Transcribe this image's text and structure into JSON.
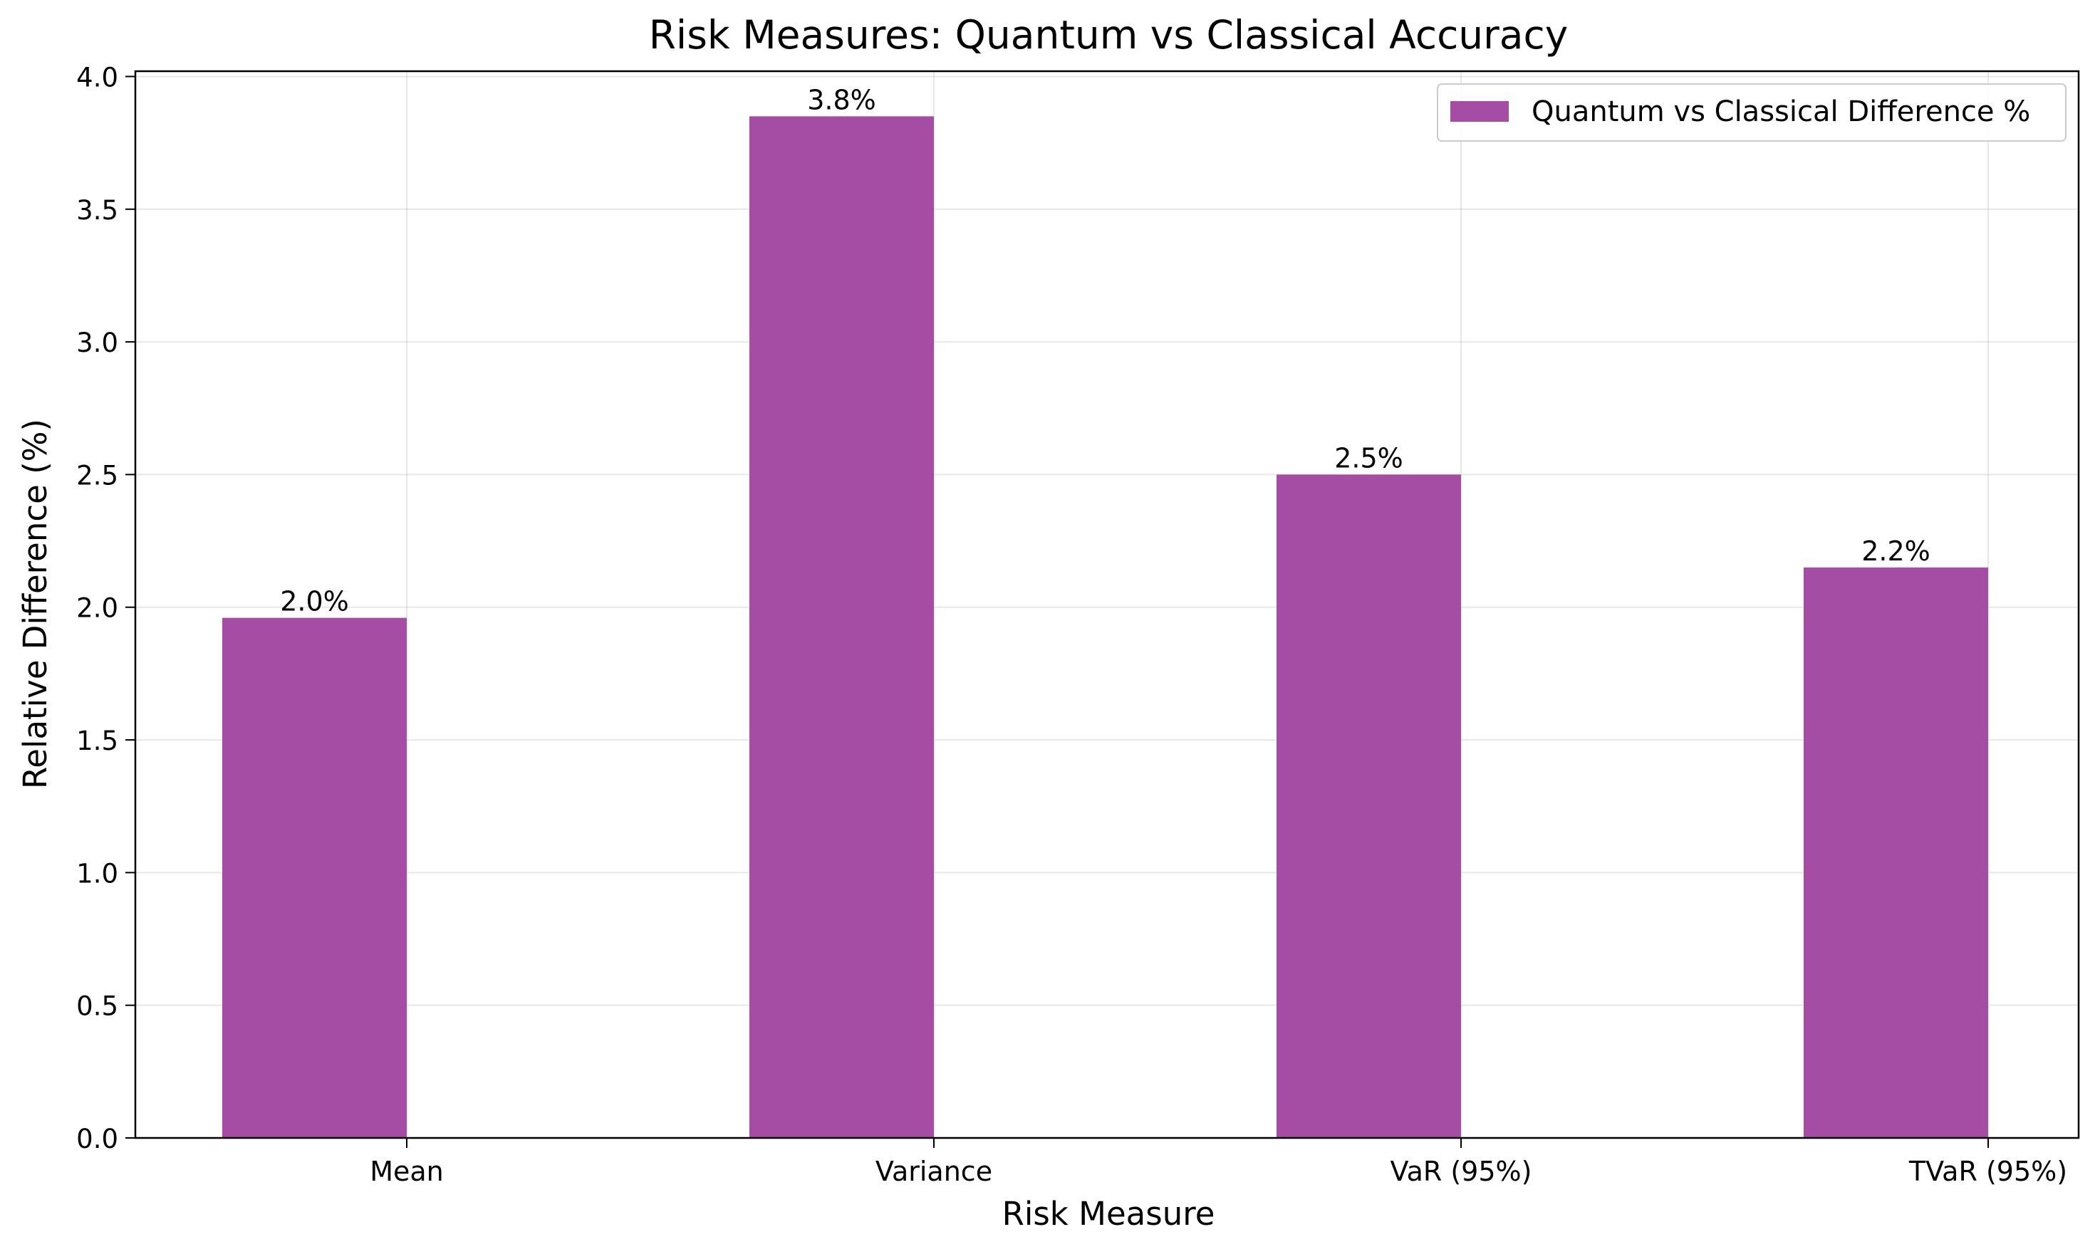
{
  "chart_data": {
    "type": "bar",
    "title": "Risk Measures: Quantum vs Classical Accuracy",
    "xlabel": "Risk Measure",
    "ylabel": "Relative Difference (%)",
    "categories": [
      "Mean",
      "Variance",
      "VaR (95%)",
      "TVaR (95%)"
    ],
    "series": [
      {
        "name": "Quantum vs Classical Difference %",
        "values": [
          1.96,
          3.85,
          2.5,
          2.15
        ],
        "data_labels": [
          "2.0%",
          "3.8%",
          "2.5%",
          "2.2%"
        ],
        "color": "#a54ca4"
      }
    ],
    "ylim": [
      0,
      4.0
    ],
    "yticks": [
      0.0,
      0.5,
      1.0,
      1.5,
      2.0,
      2.5,
      3.0,
      3.5,
      4.0
    ],
    "ytick_labels": [
      "0.0",
      "0.5",
      "1.0",
      "1.5",
      "2.0",
      "2.5",
      "3.0",
      "3.5",
      "4.0"
    ],
    "grid": true,
    "legend_position": "top-right"
  }
}
